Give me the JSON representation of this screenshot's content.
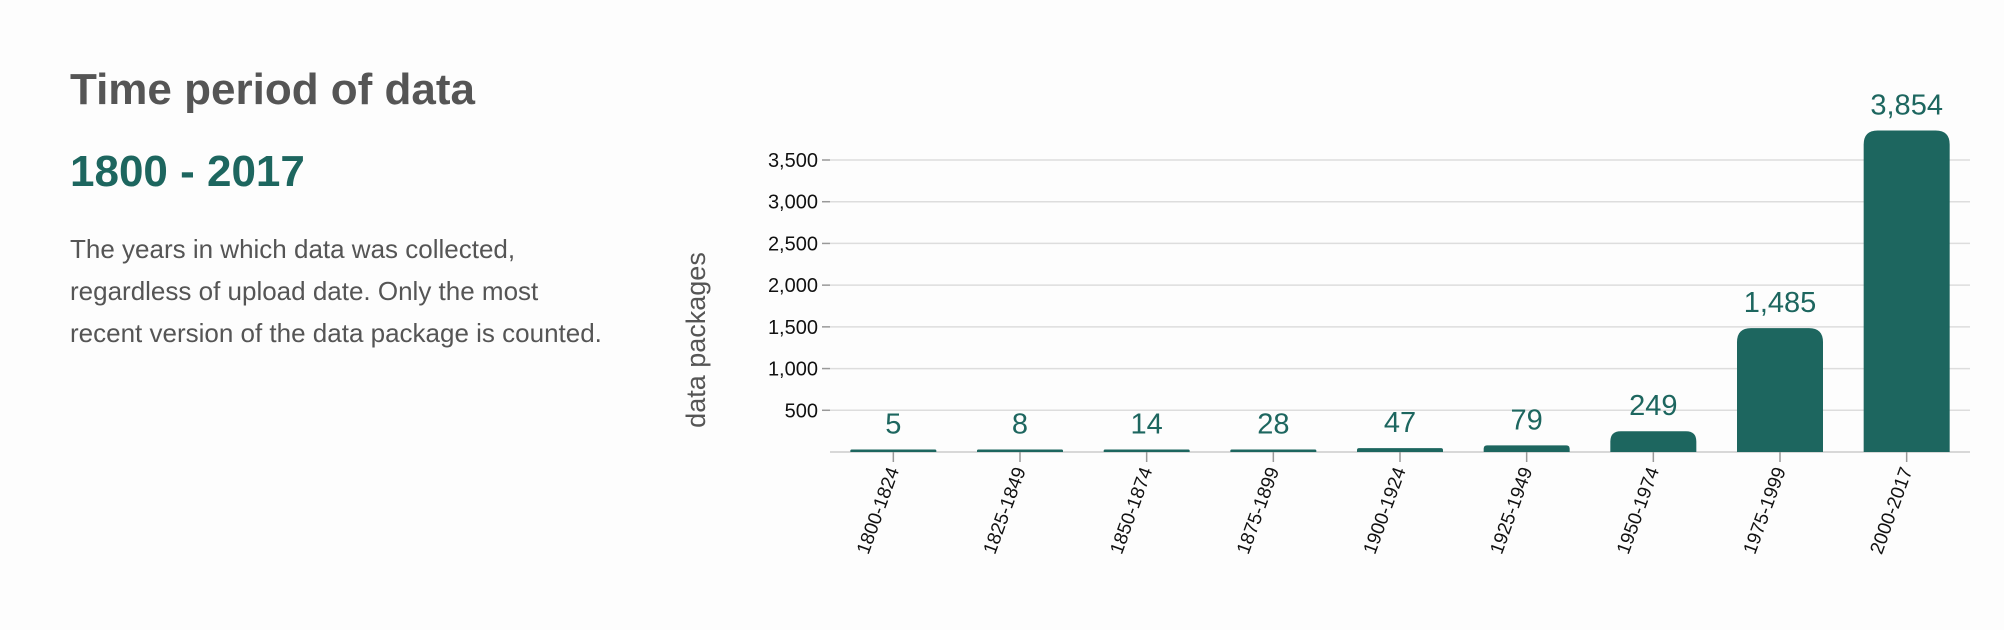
{
  "panel": {
    "title": "Time period of data",
    "range": "1800 - 2017",
    "description": "The years in which data was collected, regardless of upload date. Only the most recent version of the data package is counted."
  },
  "colors": {
    "bar": "#1d665f",
    "grid": "#dddddd",
    "label": "#1d665f"
  },
  "chart_data": {
    "type": "bar",
    "categories": [
      "1800-1824",
      "1825-1849",
      "1850-1874",
      "1875-1899",
      "1900-1924",
      "1925-1949",
      "1950-1974",
      "1975-1999",
      "2000-2017"
    ],
    "values": [
      5,
      8,
      14,
      28,
      47,
      79,
      249,
      1485,
      3854
    ],
    "value_labels": [
      "5",
      "8",
      "14",
      "28",
      "47",
      "79",
      "249",
      "1,485",
      "3,854"
    ],
    "ylabel": "data packages",
    "xlabel": "",
    "yticks": [
      500,
      1000,
      1500,
      2000,
      2500,
      3000,
      3500
    ],
    "ytick_labels": [
      "500",
      "1,000",
      "1,500",
      "2,000",
      "2,500",
      "3,000",
      "3,500"
    ],
    "ylim": [
      0,
      3500
    ],
    "grid": true
  }
}
